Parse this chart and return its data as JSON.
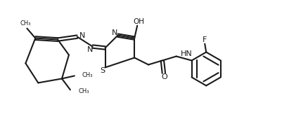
{
  "background_color": "#ffffff",
  "line_color": "#1a1a1a",
  "line_width": 1.5,
  "text_color": "#1a1a1a",
  "font_size": 7.5,
  "figsize": [
    4.38,
    1.73
  ],
  "dpi": 100,
  "xlim": [
    0,
    110
  ],
  "ylim": [
    0,
    43
  ]
}
